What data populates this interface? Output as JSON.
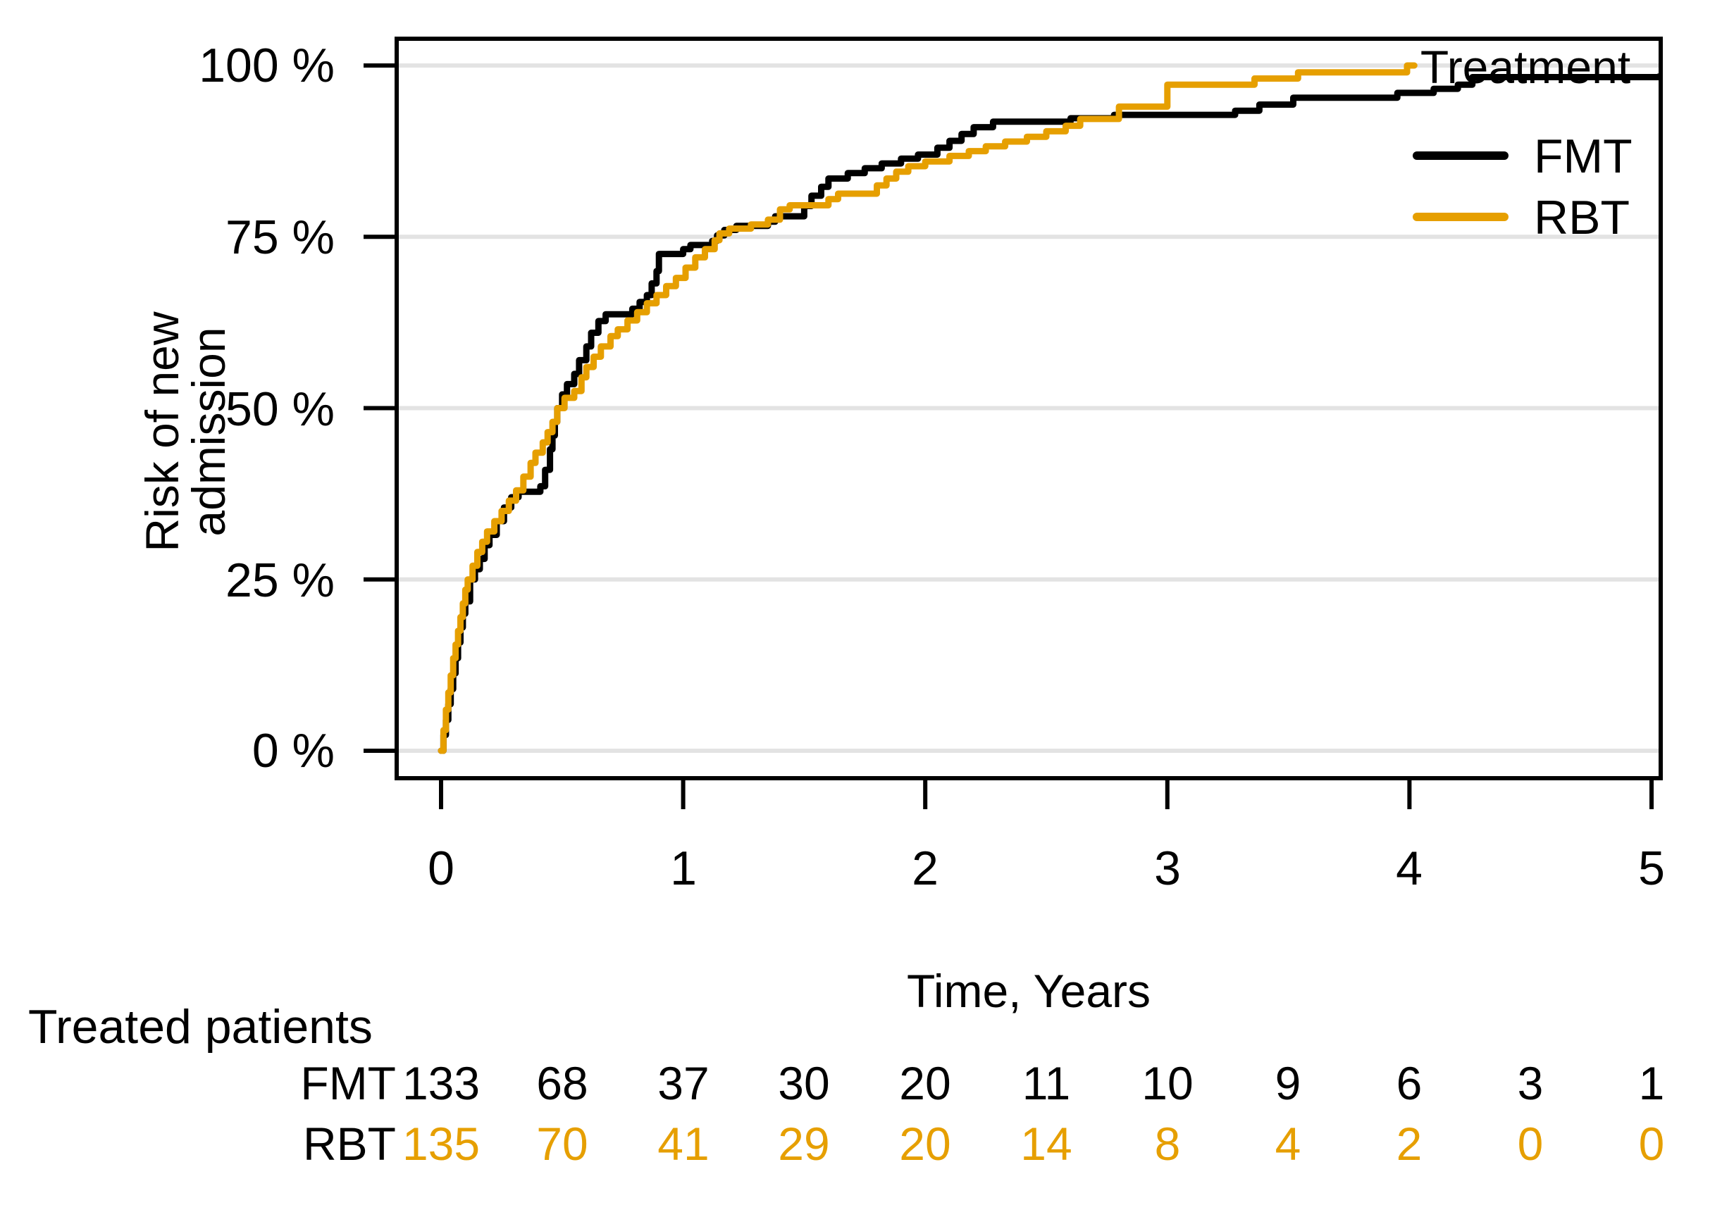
{
  "figure": {
    "y_axis": {
      "title": "Risk of new admission",
      "tick_labels": [
        "100 %",
        "75 %",
        "50 %",
        "25 %",
        "0 %"
      ],
      "tick_pcts": [
        100,
        75,
        50,
        25,
        0
      ]
    },
    "x_axis": {
      "title": "Time, Years",
      "tick_labels": [
        "0",
        "1",
        "2",
        "3",
        "4",
        "5"
      ],
      "tick_values": [
        0,
        1,
        2,
        3,
        4,
        5
      ]
    },
    "legend": {
      "title": "Treatment",
      "entries": [
        {
          "label": "FMT",
          "color": "#000000"
        },
        {
          "label": "RBT",
          "color": "#E69F00"
        }
      ]
    },
    "risk_table": {
      "title": "Treated patients",
      "times": [
        0,
        0.5,
        1,
        1.5,
        2,
        2.5,
        3,
        3.5,
        4,
        4.5,
        5
      ],
      "rows": [
        {
          "label": "FMT",
          "color": "#000000",
          "counts": [
            "133",
            "68",
            "37",
            "30",
            "20",
            "11",
            "10",
            "9",
            "6",
            "3",
            "1"
          ]
        },
        {
          "label": "RBT",
          "color": "#E69F00",
          "counts": [
            "135",
            "70",
            "41",
            "29",
            "20",
            "14",
            "8",
            "4",
            "2",
            "0",
            "0"
          ]
        }
      ]
    }
  },
  "chart_data": {
    "type": "line",
    "subtype": "step-cumulative-incidence",
    "title": "",
    "xlabel": "Time, Years",
    "ylabel": "Risk of new admission",
    "xlim": [
      0,
      5
    ],
    "ylim": [
      0,
      100
    ],
    "x_ticks": [
      0,
      1,
      2,
      3,
      4,
      5
    ],
    "y_ticks_pct": [
      0,
      25,
      50,
      75,
      100
    ],
    "grid": "horizontal",
    "grid_color": "#E3E3E3",
    "legend_position": "top-right",
    "series": [
      {
        "name": "FMT",
        "color": "#000000",
        "points": [
          [
            0,
            0
          ],
          [
            0.01,
            2.3
          ],
          [
            0.02,
            4.5
          ],
          [
            0.03,
            6.8
          ],
          [
            0.04,
            9
          ],
          [
            0.05,
            11.3
          ],
          [
            0.06,
            13.5
          ],
          [
            0.07,
            15.8
          ],
          [
            0.08,
            18
          ],
          [
            0.09,
            20
          ],
          [
            0.1,
            21.8
          ],
          [
            0.12,
            25
          ],
          [
            0.14,
            26.5
          ],
          [
            0.16,
            28
          ],
          [
            0.18,
            30
          ],
          [
            0.2,
            31.5
          ],
          [
            0.23,
            33.5
          ],
          [
            0.26,
            35.5
          ],
          [
            0.29,
            37
          ],
          [
            0.32,
            37.8
          ],
          [
            0.41,
            38.6
          ],
          [
            0.43,
            41
          ],
          [
            0.45,
            44
          ],
          [
            0.46,
            46
          ],
          [
            0.47,
            48
          ],
          [
            0.48,
            50
          ],
          [
            0.5,
            52
          ],
          [
            0.52,
            53.5
          ],
          [
            0.55,
            55
          ],
          [
            0.57,
            57
          ],
          [
            0.6,
            59
          ],
          [
            0.62,
            61
          ],
          [
            0.65,
            62.7
          ],
          [
            0.68,
            63.7
          ],
          [
            0.79,
            64.5
          ],
          [
            0.82,
            65.5
          ],
          [
            0.85,
            66.5
          ],
          [
            0.87,
            68.2
          ],
          [
            0.89,
            70
          ],
          [
            0.9,
            72.5
          ],
          [
            1,
            73.2
          ],
          [
            1.03,
            73.8
          ],
          [
            1.12,
            74.4
          ],
          [
            1.14,
            75.2
          ],
          [
            1.17,
            76
          ],
          [
            1.22,
            76.6
          ],
          [
            1.35,
            77.2
          ],
          [
            1.38,
            78
          ],
          [
            1.5,
            79.5
          ],
          [
            1.53,
            81
          ],
          [
            1.57,
            82.3
          ],
          [
            1.6,
            83.5
          ],
          [
            1.68,
            84.3
          ],
          [
            1.75,
            85
          ],
          [
            1.82,
            85.7
          ],
          [
            1.9,
            86.4
          ],
          [
            1.97,
            87
          ],
          [
            2.05,
            88
          ],
          [
            2.1,
            89
          ],
          [
            2.15,
            90
          ],
          [
            2.2,
            91
          ],
          [
            2.28,
            91.8
          ],
          [
            2.6,
            92.3
          ],
          [
            2.78,
            92.8
          ],
          [
            3.28,
            93.4
          ],
          [
            3.38,
            94.3
          ],
          [
            3.52,
            95.3
          ],
          [
            3.95,
            96
          ],
          [
            4.1,
            96.6
          ],
          [
            4.2,
            97.2
          ],
          [
            4.26,
            98.3
          ],
          [
            5.03,
            98.4
          ]
        ]
      },
      {
        "name": "RBT",
        "color": "#E69F00",
        "points": [
          [
            0,
            0
          ],
          [
            0.01,
            3
          ],
          [
            0.02,
            6
          ],
          [
            0.03,
            8.5
          ],
          [
            0.04,
            11
          ],
          [
            0.05,
            13.5
          ],
          [
            0.06,
            15.5
          ],
          [
            0.07,
            17.5
          ],
          [
            0.08,
            19.5
          ],
          [
            0.09,
            21.5
          ],
          [
            0.1,
            23.5
          ],
          [
            0.11,
            25
          ],
          [
            0.13,
            27
          ],
          [
            0.15,
            29
          ],
          [
            0.17,
            30.5
          ],
          [
            0.19,
            32
          ],
          [
            0.22,
            33.5
          ],
          [
            0.25,
            35
          ],
          [
            0.28,
            36.5
          ],
          [
            0.31,
            38
          ],
          [
            0.34,
            40
          ],
          [
            0.37,
            42
          ],
          [
            0.39,
            43.5
          ],
          [
            0.42,
            45
          ],
          [
            0.44,
            46.5
          ],
          [
            0.46,
            48
          ],
          [
            0.48,
            50
          ],
          [
            0.51,
            51.5
          ],
          [
            0.55,
            52.5
          ],
          [
            0.58,
            54.5
          ],
          [
            0.6,
            56
          ],
          [
            0.63,
            57.5
          ],
          [
            0.66,
            59
          ],
          [
            0.7,
            60.5
          ],
          [
            0.73,
            61.5
          ],
          [
            0.77,
            62.8
          ],
          [
            0.81,
            64
          ],
          [
            0.85,
            65.3
          ],
          [
            0.89,
            66.5
          ],
          [
            0.93,
            67.8
          ],
          [
            0.97,
            69
          ],
          [
            1.01,
            70.5
          ],
          [
            1.05,
            72
          ],
          [
            1.09,
            73.2
          ],
          [
            1.13,
            74.5
          ],
          [
            1.15,
            75.5
          ],
          [
            1.19,
            76.2
          ],
          [
            1.28,
            76.8
          ],
          [
            1.35,
            77.5
          ],
          [
            1.4,
            79
          ],
          [
            1.44,
            79.6
          ],
          [
            1.6,
            80.5
          ],
          [
            1.64,
            81.3
          ],
          [
            1.8,
            82.5
          ],
          [
            1.84,
            83.5
          ],
          [
            1.88,
            84.5
          ],
          [
            1.93,
            85.3
          ],
          [
            2,
            86
          ],
          [
            2.1,
            86.8
          ],
          [
            2.18,
            87.5
          ],
          [
            2.25,
            88.2
          ],
          [
            2.33,
            88.9
          ],
          [
            2.42,
            89.6
          ],
          [
            2.5,
            90.4
          ],
          [
            2.58,
            91.2
          ],
          [
            2.64,
            92.2
          ],
          [
            2.8,
            94
          ],
          [
            3,
            97.2
          ],
          [
            3.36,
            98.1
          ],
          [
            3.54,
            99
          ],
          [
            3.99,
            100
          ],
          [
            4.02,
            100
          ]
        ]
      }
    ],
    "risk_table": {
      "title": "Treated patients",
      "times": [
        0,
        0.5,
        1,
        1.5,
        2,
        2.5,
        3,
        3.5,
        4,
        4.5,
        5
      ],
      "FMT": [
        133,
        68,
        37,
        30,
        20,
        11,
        10,
        9,
        6,
        3,
        1
      ],
      "RBT": [
        135,
        70,
        41,
        29,
        20,
        14,
        8,
        4,
        2,
        0,
        0
      ]
    }
  }
}
